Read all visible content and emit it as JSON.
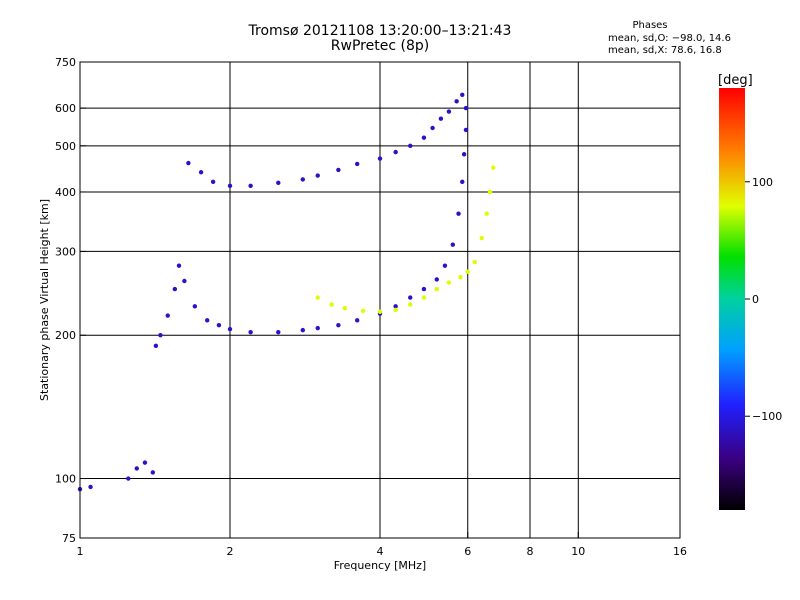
{
  "header": {
    "title_line1": "Tromsø 20121108 13:20:00–13:21:43",
    "title_line2": "RwPretec (8p)",
    "phases_title": "Phases",
    "phases_o": "mean, sd,O: −98.0, 14.6",
    "phases_x": "mean, sd,X:  78.6, 16.8"
  },
  "colors": {
    "plot_bg": "#ffffff",
    "grid": "#000000",
    "o_trace": "#2a2ae0",
    "x_trace": "#c8f020"
  },
  "chart_data": {
    "type": "scatter",
    "xlabel": "Frequency [MHz]",
    "ylabel": "Stationary phase Virtual Height [km]",
    "xscale": "log",
    "yscale": "log",
    "xlim": [
      1,
      16
    ],
    "ylim": [
      75,
      750
    ],
    "x_ticks": [
      1,
      2,
      4,
      6,
      8,
      10,
      16
    ],
    "x_tick_labels": [
      "1",
      "2",
      "4",
      "6",
      "8",
      "10",
      "16"
    ],
    "y_ticks": [
      75,
      100,
      200,
      300,
      400,
      500,
      600,
      750
    ],
    "y_tick_labels": [
      "75",
      "100",
      "200",
      "300",
      "400",
      "500",
      "600",
      "750"
    ],
    "grid": true,
    "colorbar": {
      "label": "[deg]",
      "range": [
        -180,
        180
      ],
      "ticks": [
        -100,
        0,
        100
      ],
      "tick_labels": [
        "−100",
        "0",
        "100"
      ]
    },
    "series": [
      {
        "trace": "E/F1 low trace",
        "phase": -110,
        "points": [
          [
            1.0,
            95
          ],
          [
            1.05,
            96
          ],
          [
            1.25,
            100
          ],
          [
            1.3,
            105
          ],
          [
            1.35,
            108
          ],
          [
            1.4,
            103
          ],
          [
            1.42,
            190
          ],
          [
            1.45,
            200
          ],
          [
            1.5,
            220
          ],
          [
            1.55,
            250
          ],
          [
            1.58,
            280
          ],
          [
            1.62,
            260
          ],
          [
            1.7,
            230
          ],
          [
            1.8,
            215
          ],
          [
            1.9,
            210
          ],
          [
            2.0,
            206
          ],
          [
            2.2,
            203
          ],
          [
            2.5,
            203
          ],
          [
            2.8,
            205
          ],
          [
            3.0,
            207
          ],
          [
            3.3,
            210
          ],
          [
            3.6,
            215
          ],
          [
            4.0,
            222
          ],
          [
            4.3,
            230
          ],
          [
            4.6,
            240
          ],
          [
            4.9,
            250
          ],
          [
            5.2,
            262
          ],
          [
            5.4,
            280
          ],
          [
            5.6,
            310
          ],
          [
            5.75,
            360
          ],
          [
            5.85,
            420
          ],
          [
            5.9,
            480
          ],
          [
            5.95,
            540
          ],
          [
            5.95,
            600
          ]
        ]
      },
      {
        "trace": "F2 O trace",
        "phase": -110,
        "points": [
          [
            1.65,
            460
          ],
          [
            1.75,
            440
          ],
          [
            1.85,
            420
          ],
          [
            2.0,
            412
          ],
          [
            2.2,
            412
          ],
          [
            2.5,
            418
          ],
          [
            2.8,
            425
          ],
          [
            3.0,
            433
          ],
          [
            3.3,
            445
          ],
          [
            3.6,
            458
          ],
          [
            4.0,
            470
          ],
          [
            4.3,
            485
          ],
          [
            4.6,
            500
          ],
          [
            4.9,
            520
          ],
          [
            5.1,
            545
          ],
          [
            5.3,
            570
          ],
          [
            5.5,
            590
          ],
          [
            5.7,
            620
          ],
          [
            5.85,
            640
          ]
        ]
      },
      {
        "trace": "X trace",
        "phase": 80,
        "points": [
          [
            3.0,
            240
          ],
          [
            3.2,
            232
          ],
          [
            3.4,
            228
          ],
          [
            3.7,
            225
          ],
          [
            4.0,
            224
          ],
          [
            4.3,
            226
          ],
          [
            4.6,
            232
          ],
          [
            4.9,
            240
          ],
          [
            5.2,
            250
          ],
          [
            5.5,
            258
          ],
          [
            5.8,
            265
          ],
          [
            6.0,
            272
          ],
          [
            6.2,
            285
          ],
          [
            6.4,
            320
          ],
          [
            6.55,
            360
          ],
          [
            6.65,
            400
          ],
          [
            6.75,
            450
          ]
        ]
      }
    ]
  }
}
